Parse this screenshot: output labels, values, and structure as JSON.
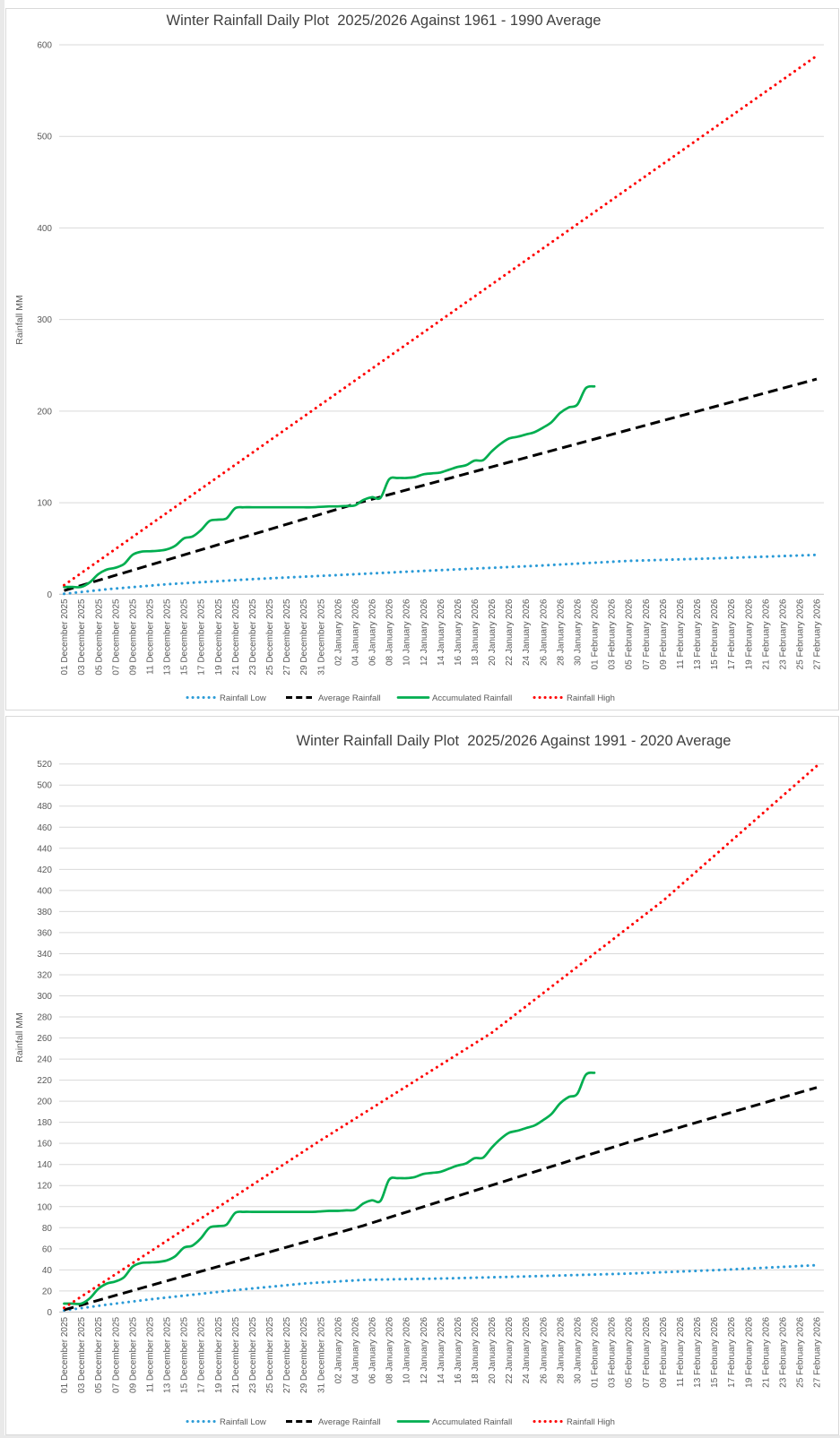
{
  "page": {
    "background": "#FFFFFF",
    "panel_border": "#D9D9D9",
    "gridline_color": "#D9D9D9",
    "axis_line_color": "#BFBFBF"
  },
  "x_tick_labels": [
    "01 December 2025",
    "03 December 2025",
    "05 December 2025",
    "07 December 2025",
    "09 December 2025",
    "11 December 2025",
    "13 December 2025",
    "15 December 2025",
    "17 December 2025",
    "19 December 2025",
    "21 December 2025",
    "23 December 2025",
    "25 December 2025",
    "27 December 2025",
    "29 December 2025",
    "31 December 2025",
    "02 January 2026",
    "04 January 2026",
    "06 January 2026",
    "08 January 2026",
    "10 January 2026",
    "12 January 2026",
    "14 January 2026",
    "16 January 2026",
    "18 January 2026",
    "20 January 2026",
    "22 January 2026",
    "24 January 2026",
    "26 January 2026",
    "28 January 2026",
    "30 January 2026",
    "01 February 2026",
    "03 February 2026",
    "05 February 2026",
    "07 February 2026",
    "09 February 2026",
    "11 February 2026",
    "13 February 2026",
    "15 February 2026",
    "17 February 2026",
    "19 February 2026",
    "21 February 2026",
    "23 February 2026",
    "25 February 2026",
    "27 February 2026"
  ],
  "charts": [
    {
      "title": "Winter Rainfall Daily Plot  2025/2026 Against 1961 - 1990 Average",
      "y_axis_title": "Rainfall MM",
      "y_axis": {
        "min": 0,
        "max": 600,
        "step": 100
      },
      "chart_data": {
        "type": "line",
        "x_days_total": 88,
        "series": [
          {
            "name": "Rainfall Low",
            "color": "#2B9BD7",
            "line_style": "dotted",
            "points_day_value": [
              [
                0,
                0.5
              ],
              [
                5,
                5.5
              ],
              [
                12,
                11
              ],
              [
                22,
                16.5
              ],
              [
                31,
                20.5
              ],
              [
                42,
                25.5
              ],
              [
                55,
                31
              ],
              [
                66,
                36.5
              ],
              [
                77,
                39.5
              ],
              [
                88,
                43
              ]
            ]
          },
          {
            "name": "Average Rainfall",
            "color": "#000000",
            "line_style": "dashed",
            "points_day_value": [
              [
                0,
                4
              ],
              [
                34.5,
                100
              ],
              [
                88,
                235
              ]
            ]
          },
          {
            "name": "Accumulated Rainfall",
            "color": "#00AE50",
            "line_style": "solid",
            "daily_values_from_day0": [
              8,
              8,
              8,
              13,
              22,
              27,
              29,
              33,
              43,
              46.5,
              47,
              47.5,
              49,
              53,
              61,
              63,
              70,
              80,
              81.5,
              83,
              94,
              95,
              95,
              95,
              95,
              95,
              95,
              95,
              95,
              95,
              95.5,
              96,
              96,
              96.5,
              97,
              103,
              106,
              105.5,
              125.5,
              127,
              127,
              128,
              131,
              132,
              133,
              136,
              139,
              141,
              146,
              146.5,
              156,
              164,
              170,
              172,
              174.5,
              177,
              182,
              188,
              198,
              204,
              207,
              225,
              227
            ]
          },
          {
            "name": "Rainfall High",
            "color": "#FF0000",
            "line_style": "dotted",
            "points_day_value": [
              [
                0,
                10
              ],
              [
                88,
                588
              ]
            ]
          }
        ]
      }
    },
    {
      "title": "Winter Rainfall Daily Plot  2025/2026 Against 1991 - 2020 Average",
      "y_axis_title": "Rainfall MM",
      "y_axis": {
        "min": 0,
        "max": 520,
        "step": 20
      },
      "chart_data": {
        "type": "line",
        "x_days_total": 88,
        "series": [
          {
            "name": "Rainfall Low",
            "color": "#2B9BD7",
            "line_style": "dotted",
            "points_day_value": [
              [
                0,
                1.5
              ],
              [
                5,
                7
              ],
              [
                10,
                12
              ],
              [
                19,
                20
              ],
              [
                28,
                27
              ],
              [
                35,
                30.5
              ],
              [
                45,
                32
              ],
              [
                55,
                34
              ],
              [
                66,
                36.5
              ],
              [
                77,
                40
              ],
              [
                88,
                44.5
              ]
            ]
          },
          {
            "name": "Average Rainfall",
            "color": "#000000",
            "line_style": "dashed",
            "points_day_value": [
              [
                0,
                2
              ],
              [
                35,
                82
              ],
              [
                66,
                161
              ],
              [
                88,
                213
              ]
            ]
          },
          {
            "name": "Accumulated Rainfall",
            "color": "#00AE50",
            "line_style": "solid",
            "daily_values_from_day0": [
              8,
              8,
              8,
              13,
              22,
              27,
              29,
              33,
              43,
              46.5,
              47,
              47.5,
              49,
              53,
              61,
              63,
              70,
              80,
              81.5,
              83,
              94,
              95,
              95,
              95,
              95,
              95,
              95,
              95,
              95,
              95,
              95.5,
              96,
              96,
              96.5,
              97,
              103,
              106,
              105.5,
              125.5,
              127,
              127,
              128,
              131,
              132,
              133,
              136,
              139,
              141,
              146,
              146.5,
              156,
              164,
              170,
              172,
              174.5,
              177,
              182,
              188,
              198,
              204,
              207,
              225,
              227
            ]
          },
          {
            "name": "Rainfall High",
            "color": "#FF0000",
            "line_style": "dotted",
            "points_day_value": [
              [
                0,
                4
              ],
              [
                30,
                163
              ],
              [
                50,
                265
              ],
              [
                70,
                390
              ],
              [
                88,
                518
              ]
            ]
          }
        ]
      }
    }
  ]
}
